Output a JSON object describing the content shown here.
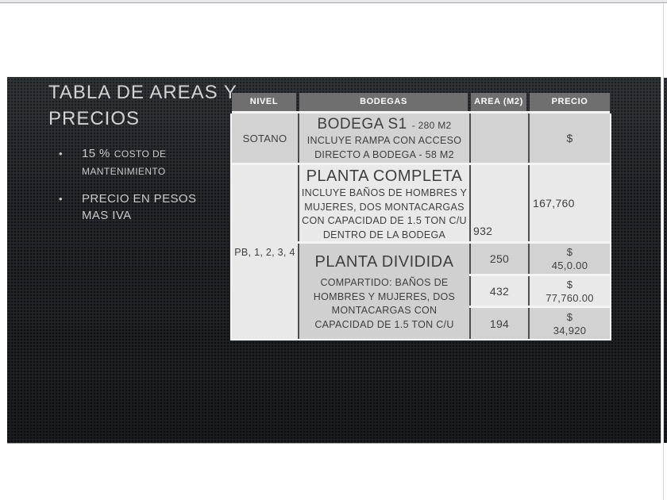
{
  "viewer": {
    "background": "#ffffff",
    "top_bar_color": "#e9e9eb"
  },
  "slide": {
    "title_lines": [
      "TABLA DE AREAS Y",
      "PRECIOS"
    ],
    "bullet_glyph": "•",
    "bullets": [
      {
        "prefix": "15 %",
        "text": "COSTO DE MANTENIMIENTO"
      },
      {
        "prefix": "",
        "text": "PRECIO EN PESOS MAS IVA"
      }
    ],
    "colors": {
      "background": "#262a2e",
      "title_text": "#d2d3d4",
      "bullet_text": "#c9cacc"
    }
  },
  "table": {
    "headers": [
      "NIVEL",
      "BODEGAS",
      "AREA (M2)",
      "PRECIO"
    ],
    "colors": {
      "header_bg": "#6f6f6f",
      "header_text": "#ffffff",
      "row_dark": "#d2d2d2",
      "row_light": "#e9e9e9",
      "merged_bodegas_bg": "#d0d0d0",
      "cell_text": "#3e3e3e"
    },
    "nivel": {
      "sotano": "SOTANO",
      "upper_floors": "PB, 1, 2, 3, 4"
    },
    "bodega_s1": {
      "title": "BODEGA S1",
      "size_suffix": "- 280 M2",
      "desc_lines": [
        "INCLUYE RAMPA CON ACCESO",
        "DIRECTO A BODEGA - 58 M2"
      ]
    },
    "planta_completa": {
      "title": "PLANTA COMPLETA",
      "desc_lines": [
        "INCLUYE BAÑOS DE HOMBRES Y",
        "MUJERES, DOS MONTACARGAS",
        "CON CAPACIDAD DE 1.5 TON C/U",
        "DENTRO DE LA BODEGA"
      ]
    },
    "planta_dividida": {
      "title": "PLANTA DIVIDIDA",
      "desc_lines": [
        "COMPARTIDO: BAÑOS DE",
        "HOMBRES Y MUJERES, DOS",
        "MONTACARGAS CON",
        "CAPACIDAD DE 1.5 TON C/U"
      ]
    },
    "areas": {
      "sotano": "",
      "planta_completa": "932",
      "dividida_row1": "250",
      "dividida_row2": "432",
      "dividida_row3": "194"
    },
    "precios": {
      "sotano": "$",
      "planta_completa": "167,760",
      "dividida_row1": {
        "sign": "$",
        "value": "45,0.00"
      },
      "dividida_row2": {
        "sign": "$",
        "value": "77,760.00"
      },
      "dividida_row3": {
        "sign": "$",
        "value": "34,920"
      }
    }
  }
}
